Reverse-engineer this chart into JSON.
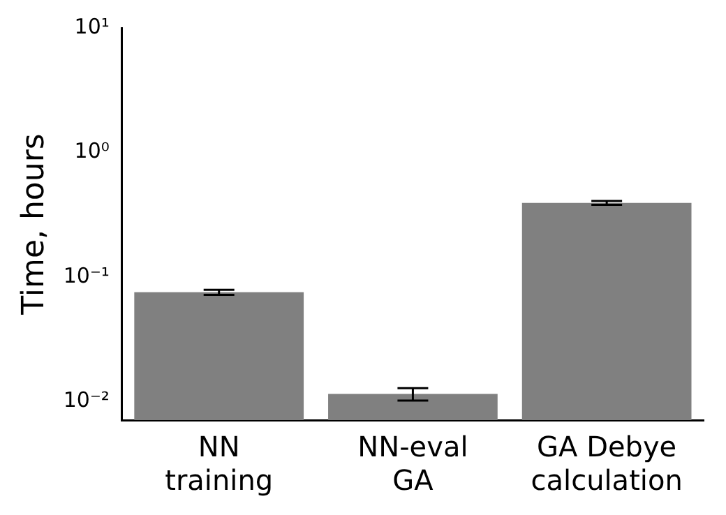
{
  "chart_data": {
    "type": "bar",
    "ylabel": "Time, hours",
    "categories": [
      "NN\ntraining",
      "NN-eval\nGA",
      "GA Debye\ncalculation"
    ],
    "values": [
      0.0754,
      0.0115,
      0.394
    ],
    "errors": [
      [
        0.072,
        0.079
      ],
      [
        0.0102,
        0.0128
      ],
      [
        0.38,
        0.408
      ]
    ],
    "color": "#808080",
    "log": true,
    "grid": false,
    "legend": false,
    "ylim": [
      0.0071,
      10
    ],
    "yticks": [
      {
        "value": 0.01,
        "label": "10⁻²"
      },
      {
        "value": 0.1,
        "label": "10⁻¹"
      },
      {
        "value": 1,
        "label": "10⁰"
      },
      {
        "value": 10,
        "label": "10¹"
      }
    ]
  }
}
